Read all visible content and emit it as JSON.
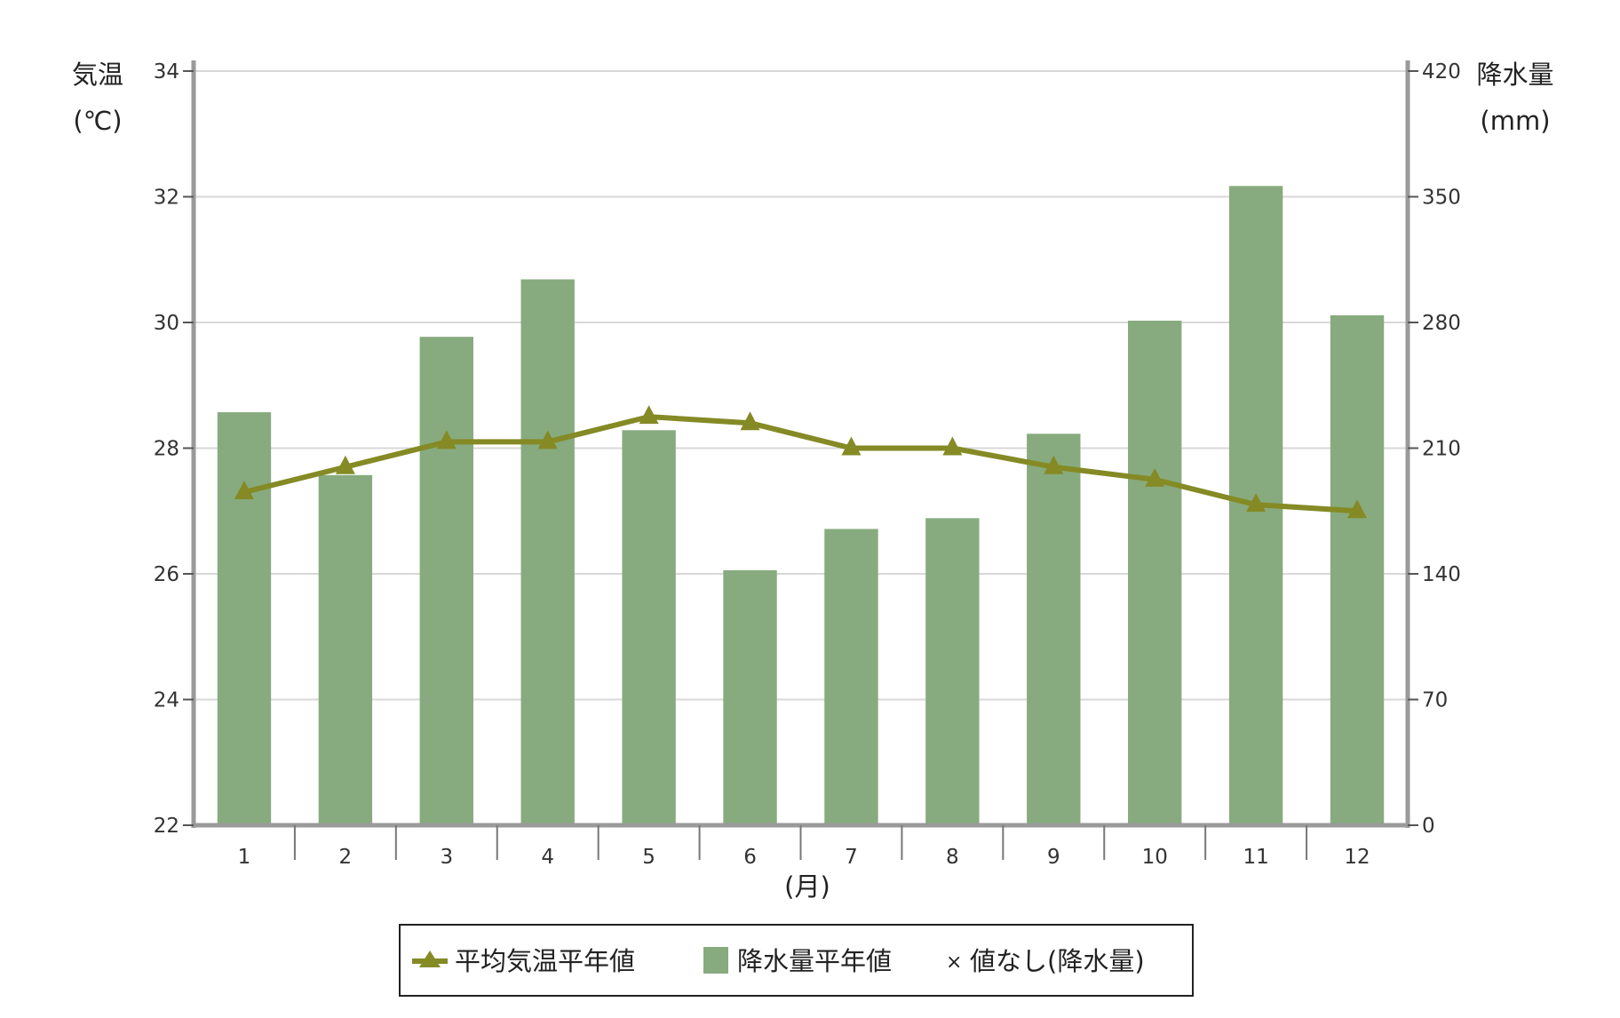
{
  "chart_data": {
    "type": "bar+line",
    "categories": [
      "1",
      "2",
      "3",
      "4",
      "5",
      "6",
      "7",
      "8",
      "9",
      "10",
      "11",
      "12"
    ],
    "xlabel": "(月)",
    "y_left": {
      "label_line1": "気温",
      "label_line2": "(℃)",
      "range": [
        22,
        34
      ],
      "ticks": [
        22,
        24,
        26,
        28,
        30,
        32,
        34
      ]
    },
    "y_right": {
      "label_line1": "降水量",
      "label_line2": "(mm)",
      "range": [
        0,
        420
      ],
      "ticks": [
        0,
        70,
        140,
        210,
        280,
        350,
        420
      ]
    },
    "series": [
      {
        "name": "平均気温平年値",
        "kind": "line",
        "axis": "left",
        "marker": "triangle",
        "color": "#858a25",
        "values": [
          27.3,
          27.7,
          28.1,
          28.1,
          28.5,
          28.4,
          28.0,
          28.0,
          27.7,
          27.5,
          27.1,
          27.0
        ]
      },
      {
        "name": "降水量平年値",
        "kind": "bar",
        "axis": "right",
        "color": "#87ab7e",
        "values": [
          230,
          195,
          272,
          304,
          220,
          142,
          165,
          171,
          218,
          281,
          356,
          284
        ]
      }
    ],
    "legend": {
      "position": "bottom",
      "items": [
        {
          "label": "平均気温平年値",
          "symbol": "line-triangle"
        },
        {
          "label": "降水量平年値",
          "symbol": "square"
        },
        {
          "label": "値なし(降水量)",
          "symbol": "×"
        }
      ]
    },
    "grid": true
  }
}
